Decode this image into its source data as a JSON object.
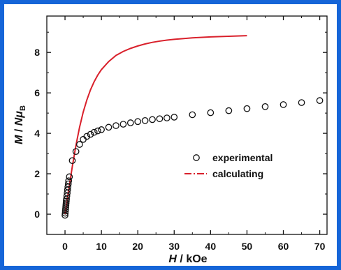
{
  "colors": {
    "frame": "#1565d8",
    "calculated_line": "#d9202b",
    "marker": "#111111"
  },
  "chart_data": {
    "type": "scatter",
    "grid": false,
    "legend_position": "center-right",
    "xlabel_parts": {
      "symbol": "H",
      "unit": " / kOe"
    },
    "ylabel_parts": {
      "symbol": "M",
      "sep": " / ",
      "n": "N",
      "mu": "μ",
      "sub": "B"
    },
    "xlim": [
      -5,
      72
    ],
    "ylim": [
      -1,
      9.8
    ],
    "xticks": [
      0,
      10,
      20,
      30,
      40,
      50,
      60,
      70
    ],
    "yticks": [
      0,
      2,
      4,
      6,
      8
    ],
    "series": [
      {
        "name": "experimental",
        "style": "open-circle",
        "x": [
          0,
          0.05,
          0.1,
          0.15,
          0.2,
          0.25,
          0.3,
          0.35,
          0.4,
          0.5,
          0.6,
          0.7,
          0.8,
          0.9,
          1.0,
          1.2,
          2,
          3,
          4,
          5,
          6,
          7,
          8,
          9,
          10,
          12,
          14,
          16,
          18,
          20,
          22,
          24,
          26,
          28,
          30,
          35,
          40,
          45,
          50,
          55,
          60,
          65,
          70
        ],
        "y": [
          -0.05,
          0.05,
          0.15,
          0.25,
          0.35,
          0.45,
          0.55,
          0.65,
          0.75,
          0.9,
          1.05,
          1.2,
          1.35,
          1.5,
          1.65,
          1.85,
          2.65,
          3.1,
          3.45,
          3.7,
          3.85,
          3.95,
          4.05,
          4.12,
          4.18,
          4.3,
          4.38,
          4.45,
          4.52,
          4.58,
          4.63,
          4.68,
          4.72,
          4.76,
          4.8,
          4.92,
          5.02,
          5.12,
          5.22,
          5.32,
          5.42,
          5.52,
          5.62
        ]
      },
      {
        "name": "calculating",
        "style": "line",
        "x": [
          0,
          1,
          2,
          3,
          4,
          5,
          6,
          7,
          8,
          9,
          10,
          12,
          14,
          16,
          18,
          20,
          22,
          24,
          26,
          28,
          30,
          35,
          40,
          45,
          50
        ],
        "y": [
          0,
          1.2,
          2.35,
          3.4,
          4.3,
          5.05,
          5.65,
          6.15,
          6.55,
          6.88,
          7.15,
          7.55,
          7.85,
          8.05,
          8.2,
          8.32,
          8.42,
          8.5,
          8.56,
          8.61,
          8.65,
          8.72,
          8.77,
          8.8,
          8.83
        ]
      }
    ]
  }
}
